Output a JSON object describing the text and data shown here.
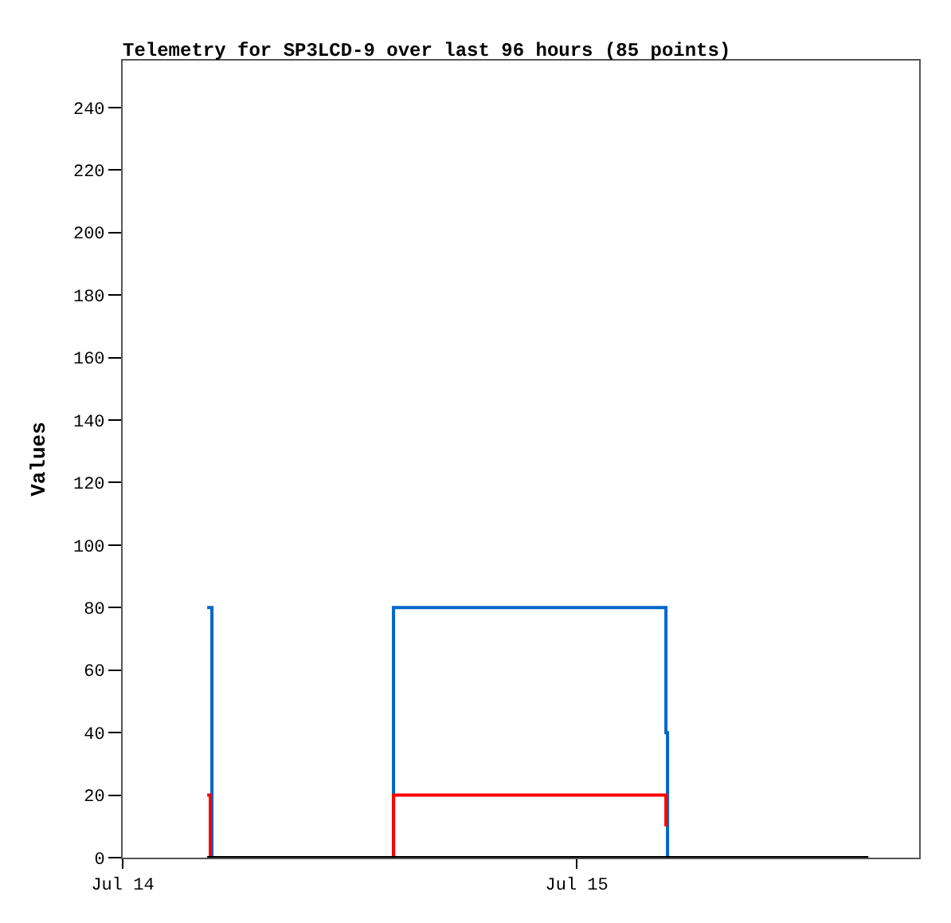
{
  "chart_data": {
    "type": "step",
    "title": "Telemetry for SP3LCD-9 over last 96 hours (85 points)",
    "ylabel": "Values",
    "xlim": [
      "--07-14",
      "--07-15T18:06"
    ],
    "xticks": [
      {
        "value": "--07-14",
        "label": "Jul 14"
      },
      {
        "value": "--07-15",
        "label": "Jul 15"
      }
    ],
    "ylim": [
      0,
      255
    ],
    "yticks": [
      0,
      20,
      40,
      60,
      80,
      100,
      120,
      140,
      160,
      180,
      200,
      220,
      240
    ],
    "grid": false,
    "marker": "none",
    "line_style": "solid",
    "series": [
      {
        "color": "#0066cc",
        "x": [
          "--07-14T04:28",
          "--07-14T04:43",
          "--07-14T14:19",
          "--07-15T04:43",
          "--07-15T04:48"
        ],
        "values": [
          80,
          0,
          80,
          40,
          0
        ]
      },
      {
        "color": "#ff0000",
        "x": [
          "--07-14T04:28",
          "--07-14T04:38",
          "--07-14T14:19",
          "--07-15T04:43"
        ],
        "values": [
          20,
          0,
          20,
          10
        ]
      },
      {
        "color": "#000000",
        "x": [
          "--07-14T04:28",
          "--07-15T15:25"
        ],
        "values": [
          0,
          0
        ]
      }
    ]
  }
}
